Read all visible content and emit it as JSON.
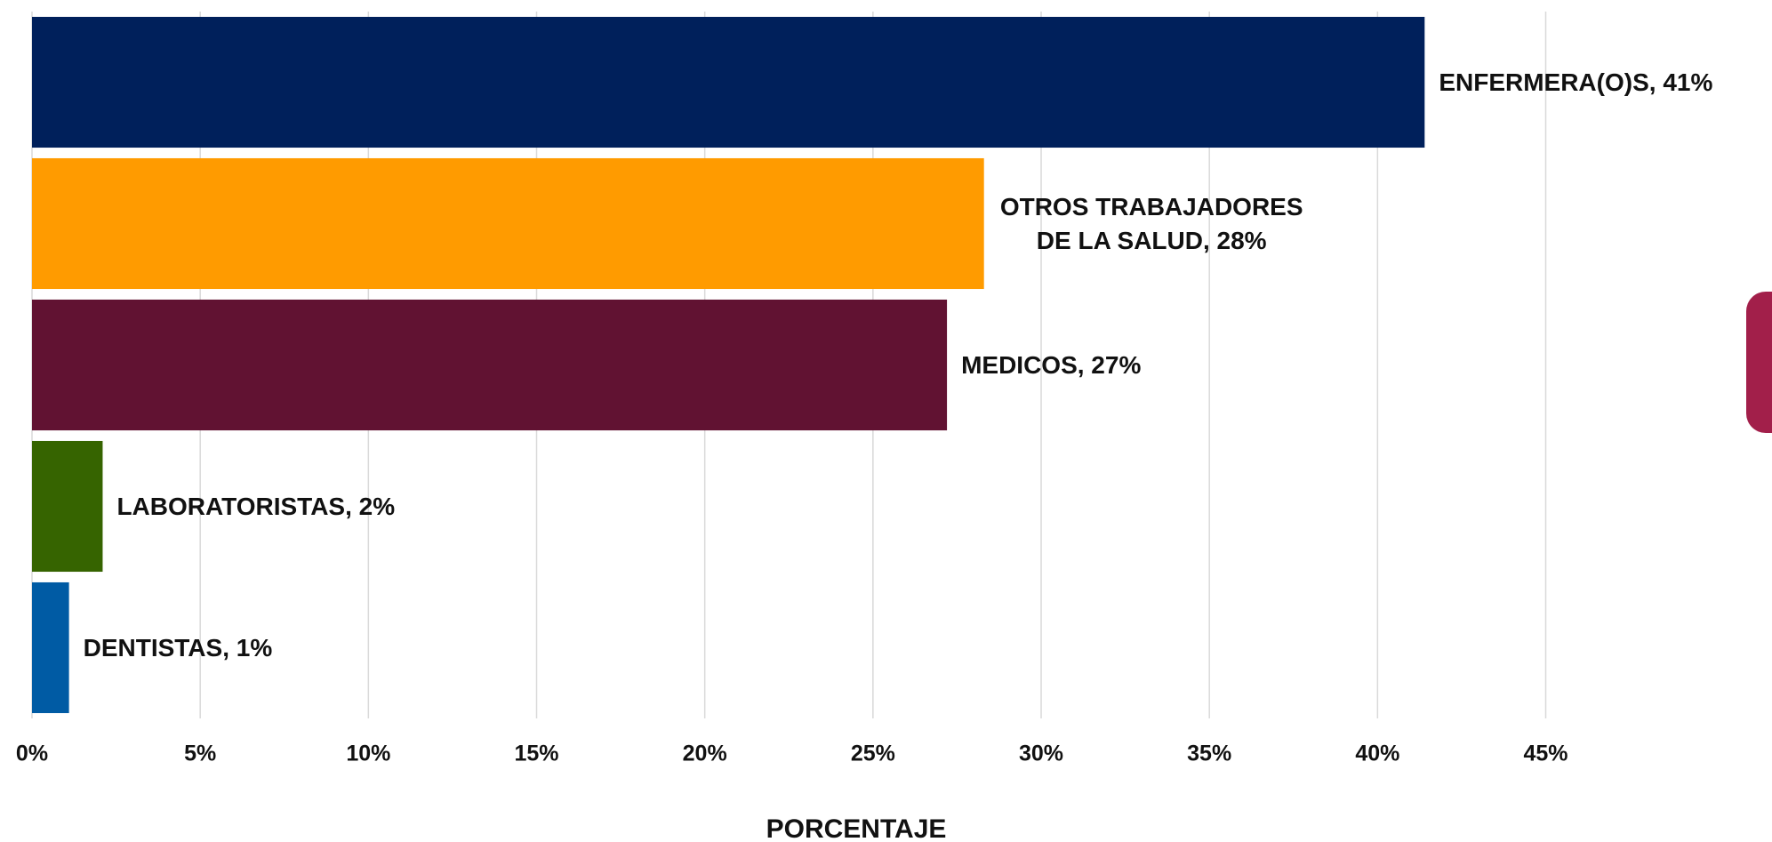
{
  "chart_data": {
    "type": "bar",
    "orientation": "horizontal",
    "values": [
      41.4,
      28.3,
      27.2,
      2.1,
      1.1
    ],
    "value_labels": [
      "ENFERMERA(O)S, 41%",
      "OTROS TRABAJADORES DE LA SALUD, 28%",
      "MEDICOS, 27%",
      "LABORATORISTAS, 2%",
      "DENTISTAS, 1%"
    ],
    "colors": [
      "#00205b",
      "#ff9b00",
      "#611232",
      "#366400",
      "#005ba4"
    ],
    "xlim": [
      0,
      51.7
    ],
    "xticks": [
      {
        "value": 0,
        "label": "0%"
      },
      {
        "value": 5,
        "label": "5%"
      },
      {
        "value": 10,
        "label": "10%"
      },
      {
        "value": 15,
        "label": "15%"
      },
      {
        "value": 20,
        "label": "20%"
      },
      {
        "value": 25,
        "label": "25%"
      },
      {
        "value": 30,
        "label": "30%"
      },
      {
        "value": 35,
        "label": "35%"
      },
      {
        "value": 40,
        "label": "40%"
      },
      {
        "value": 45,
        "label": "45%"
      }
    ],
    "x_label": "PORCENTAJE",
    "grid": true
  }
}
